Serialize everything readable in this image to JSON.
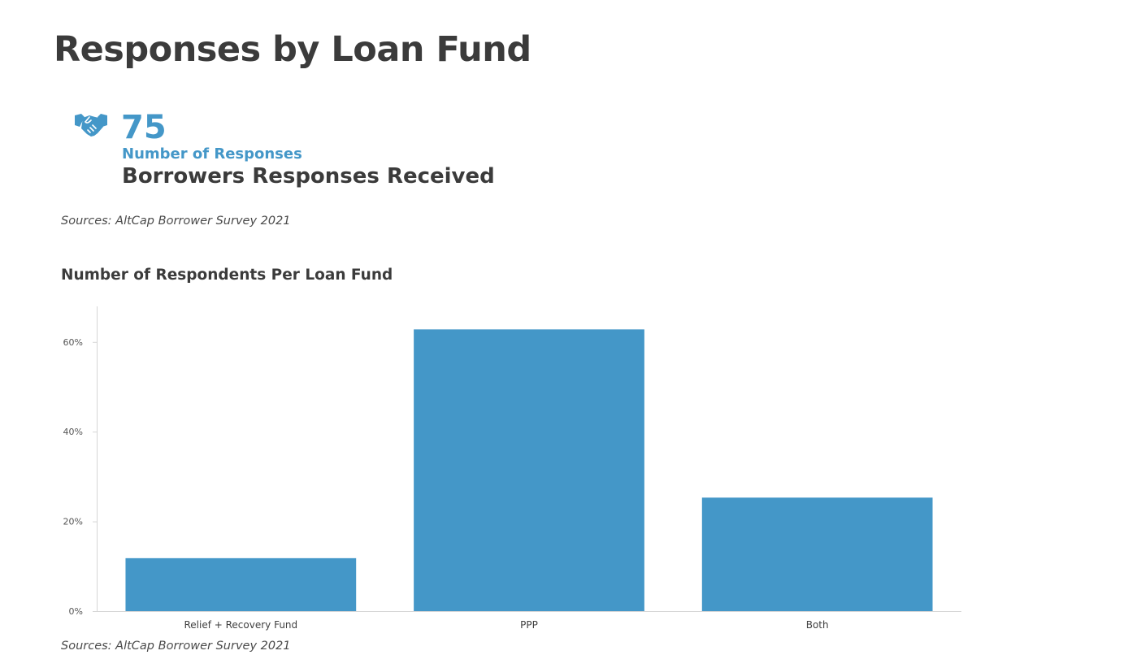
{
  "page": {
    "title": "Responses by Loan Fund"
  },
  "stat": {
    "icon": "handshake-icon",
    "value": "75",
    "label": "Number of Responses",
    "description": "Borrowers Responses Received",
    "color": "#4497c8"
  },
  "sources": {
    "top": "Sources: AltCap Borrower Survey 2021",
    "bottom": "Sources: AltCap Borrower Survey 2021"
  },
  "chart_data": {
    "type": "bar",
    "title": "Number of Respondents Per Loan Fund",
    "categories": [
      "Relief + Recovery Fund",
      "PPP",
      "Both"
    ],
    "values": [
      11.8,
      62.8,
      25.3
    ],
    "unit": "%",
    "ylim": [
      0,
      68
    ],
    "yticks": [
      0,
      20,
      40,
      60
    ],
    "ytick_labels": [
      "0%",
      "20%",
      "40%",
      "60%"
    ],
    "xlabel": "",
    "ylabel": "",
    "bar_color": "#4497c8",
    "grid": false,
    "legend": "none"
  }
}
